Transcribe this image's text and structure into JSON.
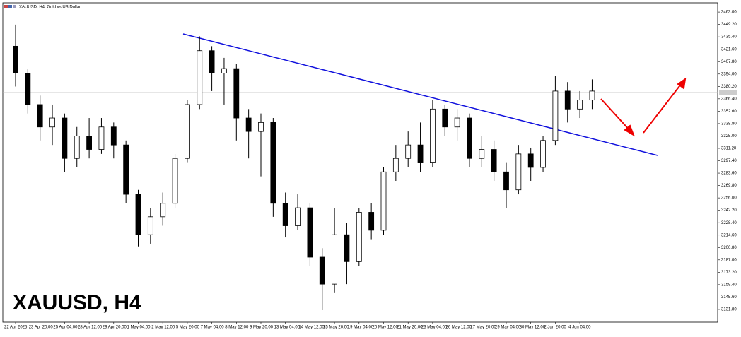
{
  "chart_data": {
    "type": "candlestick",
    "title": "XAUUSD, H4:  Gold vs US Dollar",
    "label": "XAUUSD, H4",
    "categories": [
      "22 Apr 2025",
      null,
      "23 Apr 20:00",
      null,
      "25 Apr 04:00",
      null,
      "28 Apr 12:00",
      null,
      "29 Apr 20:00",
      null,
      "1 May 04:00",
      null,
      "2 May 12:00",
      null,
      "5 May 20:00",
      null,
      "7 May 04:00",
      null,
      "8 May 12:00",
      null,
      "9 May 20:00",
      null,
      "13 May 04:00",
      null,
      "14 May 12:00",
      null,
      "15 May 20:00",
      null,
      "19 May 04:00",
      null,
      "20 May 12:00",
      null,
      "21 May 20:00",
      null,
      "23 May 04:00",
      null,
      "26 May 12:00",
      null,
      "27 May 20:00",
      null,
      "29 May 04:00",
      null,
      "30 May 12:00",
      null,
      "2 Jun 20:00",
      null,
      "4 Jun 04:00",
      null
    ],
    "open": [
      3425,
      3395,
      3360,
      3335,
      3345,
      3300,
      3325,
      3310,
      3335,
      3315,
      3260,
      3215,
      3235,
      3250,
      3300,
      3360,
      3420,
      3395,
      3400,
      3345,
      3330,
      3340,
      3250,
      3225,
      3245,
      3190,
      3160,
      3215,
      3185,
      3240,
      3220,
      3285,
      3300,
      3315,
      3295,
      3355,
      3335,
      3345,
      3300,
      3310,
      3285,
      3265,
      3305,
      3290,
      3320,
      3375,
      3355,
      3365
    ],
    "high": [
      3449,
      3400,
      3370,
      3360,
      3350,
      3335,
      3345,
      3345,
      3340,
      3320,
      3265,
      3245,
      3262,
      3305,
      3365,
      3436,
      3425,
      3412,
      3405,
      3355,
      3350,
      3345,
      3262,
      3260,
      3250,
      3200,
      3245,
      3228,
      3245,
      3250,
      3290,
      3315,
      3330,
      3340,
      3365,
      3360,
      3355,
      3350,
      3325,
      3320,
      3295,
      3315,
      3312,
      3325,
      3392,
      3385,
      3375,
      3388
    ],
    "low": [
      3380,
      3350,
      3320,
      3315,
      3285,
      3290,
      3300,
      3305,
      3300,
      3250,
      3202,
      3205,
      3225,
      3245,
      3295,
      3355,
      3375,
      3360,
      3320,
      3300,
      3280,
      3235,
      3212,
      3220,
      3180,
      3131,
      3150,
      3160,
      3180,
      3210,
      3215,
      3275,
      3290,
      3285,
      3290,
      3325,
      3320,
      3290,
      3290,
      3275,
      3245,
      3260,
      3275,
      3285,
      3315,
      3340,
      3345,
      3355
    ],
    "close": [
      3395,
      3360,
      3335,
      3345,
      3300,
      3325,
      3310,
      3335,
      3315,
      3260,
      3215,
      3235,
      3250,
      3300,
      3360,
      3420,
      3395,
      3400,
      3345,
      3330,
      3340,
      3250,
      3225,
      3245,
      3190,
      3160,
      3215,
      3185,
      3240,
      3220,
      3285,
      3300,
      3315,
      3295,
      3355,
      3335,
      3345,
      3300,
      3310,
      3285,
      3265,
      3305,
      3290,
      3320,
      3375,
      3355,
      3365,
      3375
    ],
    "ylim": [
      3117.6,
      3473.3
    ],
    "yticks": [
      {
        "value": 3463,
        "label": "3463.00"
      },
      {
        "value": 3449.2,
        "label": "3449.20"
      },
      {
        "value": 3435.4,
        "label": "3435.40"
      },
      {
        "value": 3421.6,
        "label": "3421.60"
      },
      {
        "value": 3407.8,
        "label": "3407.80"
      },
      {
        "value": 3394,
        "label": "3394.00"
      },
      {
        "value": 3380.2,
        "label": "3380.20"
      },
      {
        "value": 3366.4,
        "label": "3366.40"
      },
      {
        "value": 3352.6,
        "label": "3352.60"
      },
      {
        "value": 3338.8,
        "label": "3338.80"
      },
      {
        "value": 3325,
        "label": "3325.00"
      },
      {
        "value": 3311.2,
        "label": "3311.20"
      },
      {
        "value": 3297.4,
        "label": "3297.40"
      },
      {
        "value": 3283.6,
        "label": "3283.60"
      },
      {
        "value": 3269.8,
        "label": "3269.80"
      },
      {
        "value": 3256,
        "label": "3256.00"
      },
      {
        "value": 3242.2,
        "label": "3242.20"
      },
      {
        "value": 3228.4,
        "label": "3228.40"
      },
      {
        "value": 3214.6,
        "label": "3214.60"
      },
      {
        "value": 3200.8,
        "label": "3200.80"
      },
      {
        "value": 3187,
        "label": "3187.00"
      },
      {
        "value": 3173.2,
        "label": "3173.20"
      },
      {
        "value": 3159.4,
        "label": "3159.40"
      },
      {
        "value": 3145.6,
        "label": "3145.60"
      },
      {
        "value": 3131.8,
        "label": "3131.80"
      }
    ],
    "up_color": "#ffffff",
    "down_color": "#000000"
  }
}
